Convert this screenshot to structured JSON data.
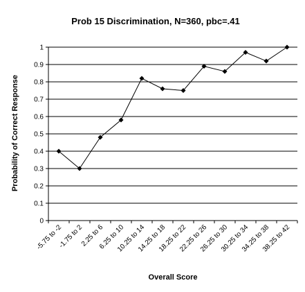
{
  "chart_data": {
    "type": "line",
    "title": "Prob 15 Discrimination, N=360, pbc=.41",
    "xlabel": "Overall Score",
    "ylabel": "Probability of Correct Response",
    "categories": [
      "-5.75 to -2",
      "-1.75 to 2",
      "2.25 to 6",
      "6.25 to 10",
      "10.25 to 14",
      "14.25 to 18",
      "18.25 to 22",
      "22.25 to 26",
      "26.25 to 30",
      "30.25 to 34",
      "34.25 to 38",
      "38.25 to 42"
    ],
    "series": [
      {
        "values": [
          0.4,
          0.3,
          0.48,
          0.58,
          0.82,
          0.76,
          0.75,
          0.89,
          0.86,
          0.97,
          0.92,
          1.0
        ]
      }
    ],
    "ylim": [
      0,
      1
    ],
    "yticks": [
      "0",
      "0.1",
      "0.2",
      "0.3",
      "0.4",
      "0.5",
      "0.6",
      "0.7",
      "0.8",
      "0.9",
      "1"
    ],
    "grid": "horizontal",
    "legend": "none",
    "colors": {
      "line": "#000000",
      "grid": "#000000",
      "background": "#ffffff"
    }
  }
}
